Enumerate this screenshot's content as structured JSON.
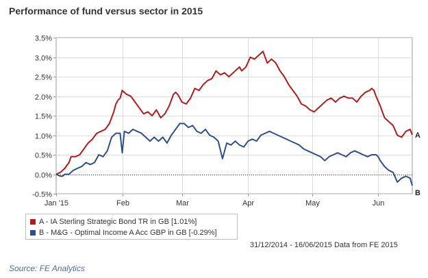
{
  "title": "Performance of fund versus sector in 2015",
  "chart_data": {
    "type": "line",
    "title": "Performance of fund versus sector in 2015",
    "xlabel": "",
    "ylabel": "",
    "x_tick_labels": [
      "Jan '15",
      "Feb",
      "Mar",
      "Apr",
      "May",
      "Jun"
    ],
    "x_tick_days": [
      0,
      31,
      59,
      90,
      120,
      151
    ],
    "x_range_days": [
      0,
      167
    ],
    "y_ticks": [
      -0.5,
      0.0,
      0.5,
      1.0,
      1.5,
      2.0,
      2.5,
      3.0,
      3.5
    ],
    "y_tick_labels": [
      "-0.5%",
      "0.0%",
      "0.5%",
      "1.0%",
      "1.5%",
      "2.0%",
      "2.5%",
      "3.0%",
      "3.5%"
    ],
    "ylim": [
      -0.5,
      3.5
    ],
    "grid": true,
    "zero_line": true,
    "series": [
      {
        "name": "A - IA Sterling Strategic Bond TR in GB [1.01%]",
        "end_label": "A",
        "color": "#b31b1b",
        "days": [
          0,
          2,
          4,
          6,
          7,
          9,
          11,
          13,
          15,
          17,
          19,
          21,
          23,
          25,
          27,
          28,
          29,
          30,
          31,
          33,
          35,
          37,
          39,
          41,
          43,
          45,
          47,
          49,
          51,
          53,
          55,
          56,
          57,
          59,
          61,
          63,
          65,
          67,
          69,
          71,
          73,
          75,
          77,
          79,
          81,
          83,
          85,
          86,
          87,
          89,
          91,
          93,
          95,
          97,
          99,
          101,
          103,
          105,
          107,
          109,
          111,
          113,
          115,
          117,
          119,
          121,
          123,
          125,
          127,
          129,
          131,
          133,
          135,
          137,
          139,
          141,
          143,
          145,
          147,
          148,
          149,
          150,
          152,
          154,
          156,
          158,
          160,
          162,
          164,
          166,
          167
        ],
        "values": [
          0.0,
          0.05,
          0.15,
          0.3,
          0.45,
          0.45,
          0.5,
          0.65,
          0.8,
          0.9,
          1.05,
          1.1,
          1.15,
          1.3,
          1.6,
          1.8,
          1.9,
          1.95,
          2.15,
          2.05,
          2.0,
          1.85,
          1.7,
          1.55,
          1.6,
          1.5,
          1.65,
          1.45,
          1.55,
          1.75,
          2.05,
          2.1,
          2.05,
          1.85,
          1.8,
          1.95,
          2.2,
          2.15,
          2.3,
          2.4,
          2.45,
          2.65,
          2.55,
          2.6,
          2.5,
          2.6,
          2.7,
          2.75,
          2.65,
          2.75,
          3.0,
          2.95,
          3.05,
          3.15,
          2.85,
          2.95,
          2.85,
          2.65,
          2.5,
          2.3,
          2.15,
          2.0,
          1.8,
          1.75,
          1.65,
          1.6,
          1.7,
          1.8,
          1.9,
          1.95,
          1.85,
          1.95,
          2.0,
          1.95,
          1.95,
          1.85,
          2.0,
          2.1,
          2.15,
          2.2,
          2.15,
          2.0,
          1.75,
          1.45,
          1.35,
          1.25,
          1.0,
          0.95,
          1.1,
          1.15,
          1.01
        ]
      },
      {
        "name": "B - M&G - Optimal Income A Acc GBP in GB [-0.29%]",
        "end_label": "B",
        "color": "#2e4f8f",
        "days": [
          0,
          2,
          3,
          4,
          6,
          8,
          10,
          12,
          14,
          16,
          18,
          20,
          22,
          24,
          26,
          28,
          30,
          31,
          32,
          34,
          36,
          38,
          40,
          42,
          44,
          46,
          48,
          50,
          52,
          54,
          56,
          58,
          60,
          62,
          64,
          66,
          68,
          70,
          72,
          74,
          76,
          78,
          80,
          82,
          84,
          86,
          88,
          90,
          92,
          94,
          96,
          98,
          100,
          102,
          104,
          106,
          108,
          110,
          112,
          114,
          116,
          118,
          120,
          122,
          124,
          126,
          128,
          130,
          132,
          134,
          136,
          138,
          140,
          142,
          144,
          146,
          148,
          150,
          151,
          152,
          154,
          156,
          158,
          160,
          162,
          164,
          166,
          167
        ],
        "values": [
          0.0,
          -0.05,
          -0.05,
          0.0,
          0.0,
          0.1,
          0.15,
          0.2,
          0.3,
          0.25,
          0.3,
          0.5,
          0.45,
          0.6,
          0.95,
          1.05,
          1.05,
          0.55,
          1.1,
          1.05,
          1.15,
          1.1,
          1.05,
          0.95,
          0.85,
          0.95,
          0.85,
          0.95,
          0.8,
          1.0,
          1.15,
          1.3,
          1.3,
          1.2,
          1.25,
          1.1,
          1.05,
          1.15,
          1.0,
          0.95,
          0.85,
          0.4,
          0.8,
          0.75,
          0.85,
          0.75,
          0.7,
          0.85,
          0.9,
          0.85,
          1.0,
          1.05,
          1.1,
          1.05,
          1.0,
          0.95,
          0.9,
          0.85,
          0.8,
          0.75,
          0.65,
          0.6,
          0.55,
          0.5,
          0.45,
          0.35,
          0.45,
          0.5,
          0.55,
          0.5,
          0.45,
          0.55,
          0.6,
          0.55,
          0.5,
          0.45,
          0.5,
          0.5,
          0.45,
          0.35,
          0.2,
          0.1,
          0.05,
          -0.2,
          -0.1,
          -0.05,
          -0.1,
          -0.29
        ]
      }
    ]
  },
  "legend": {
    "a_label": "A - IA Sterling Strategic Bond TR in GB [1.01%]",
    "b_label": "B - M&G - Optimal Income A Acc GBP in GB [-0.29%]"
  },
  "footer": {
    "date_range": "31/12/2014 - 16/06/2015 Data from FE 2015",
    "source_label": "Source: ",
    "source_name": "FE Analytics"
  }
}
